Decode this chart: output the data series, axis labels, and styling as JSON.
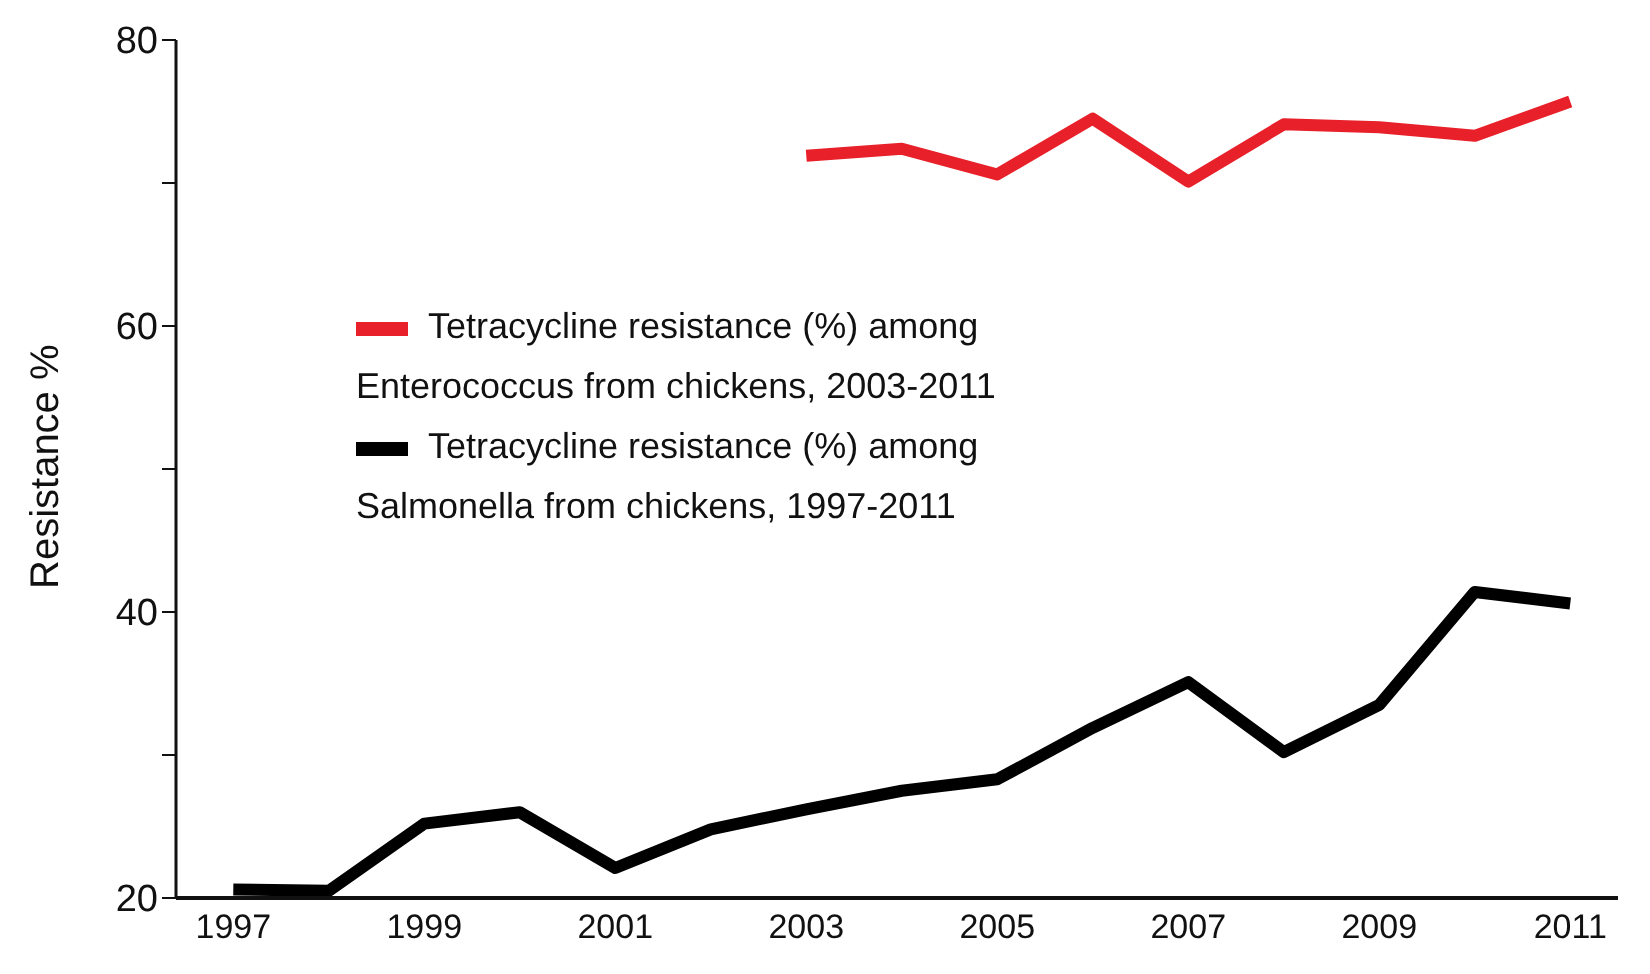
{
  "chart_data": {
    "type": "line",
    "ylabel": "Resistance %",
    "xlim": [
      1996.4,
      2011.5
    ],
    "xticks": [
      1997,
      1999,
      2001,
      2003,
      2005,
      2007,
      2009,
      2011
    ],
    "ylim": [
      20,
      80
    ],
    "yticks": [
      20,
      {
        "value": 30,
        "label": null
      },
      40,
      {
        "value": 50,
        "label": null
      },
      60,
      {
        "value": 70,
        "label": null
      },
      80
    ],
    "grid": false,
    "legend": "left",
    "marker": "none",
    "line_style": "solid",
    "series": [
      {
        "name": "Tetracycline resistance (%) among Enterococcus from chickens, 2003-2011",
        "color": "#e8202a",
        "x": [
          2003,
          2004,
          2005,
          2006,
          2007,
          2008,
          2009,
          2010,
          2011
        ],
        "values": [
          71.9,
          72.4,
          70.6,
          74.5,
          70.1,
          74.1,
          73.9,
          73.3,
          75.7
        ]
      },
      {
        "name": "Tetracycline resistance (%) among Salmonella from chickens, 1997-2011",
        "color": "#000000",
        "x": [
          1997,
          1998,
          1999,
          2000,
          2001,
          2002,
          2003,
          2004,
          2005,
          2006,
          2007,
          2008,
          2009,
          2010,
          2011
        ],
        "values": [
          20.6,
          20.5,
          25.2,
          26.0,
          22.1,
          24.8,
          26.2,
          27.5,
          28.3,
          31.9,
          35.1,
          30.2,
          33.5,
          41.4,
          40.6
        ]
      }
    ]
  }
}
